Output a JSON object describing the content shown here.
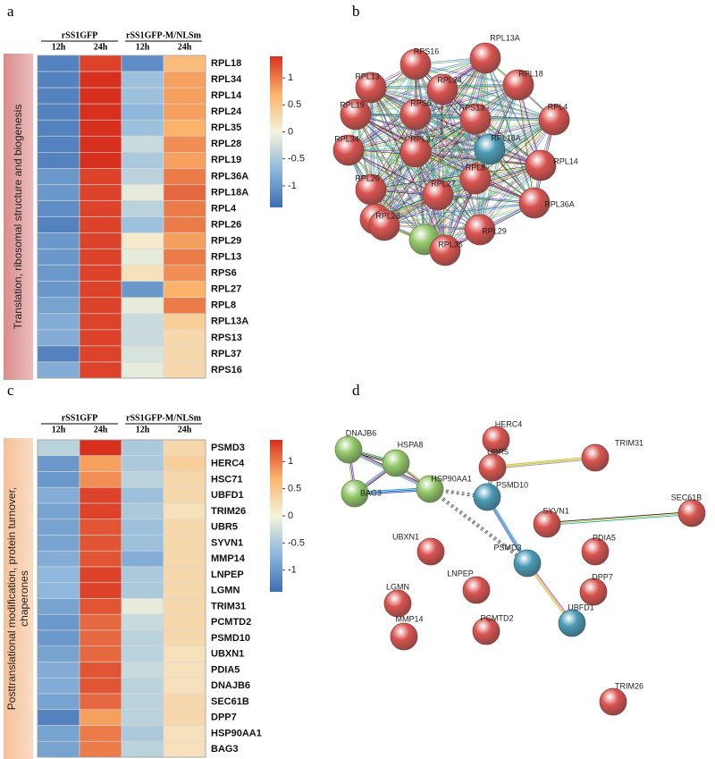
{
  "chart_data": [
    {
      "type": "heatmap",
      "panel": "a",
      "groups": [
        {
          "name": "rSS1GFP",
          "columns": [
            "12h",
            "24h"
          ]
        },
        {
          "name": "rSS1GFP-M/NLSm",
          "columns": [
            "12h",
            "24h"
          ]
        }
      ],
      "side_label": [
        "Translation, ribosomal structure and biogenesis"
      ],
      "rows": [
        "RPL18",
        "RPL34",
        "RPL14",
        "RPL24",
        "RPL35",
        "RPL28",
        "RPL19",
        "RPL36A",
        "RPL18A",
        "RPL4",
        "RPL26",
        "RPL29",
        "RPL13",
        "RPS6",
        "RPL27",
        "RPL8",
        "RPL13A",
        "RPS13",
        "RPL37",
        "RPS16"
      ],
      "values": [
        [
          -1.2,
          1.3,
          -1.1,
          0.6
        ],
        [
          -1.2,
          1.4,
          -0.6,
          0.8
        ],
        [
          -1.2,
          1.4,
          -0.6,
          0.8
        ],
        [
          -1.2,
          1.4,
          -0.7,
          0.8
        ],
        [
          -1.2,
          1.4,
          -0.6,
          0.7
        ],
        [
          -1.2,
          1.5,
          -0.3,
          0.9
        ],
        [
          -1.2,
          1.5,
          -0.5,
          0.8
        ],
        [
          -1.0,
          1.3,
          -0.4,
          1.0
        ],
        [
          -1.0,
          1.3,
          -0.1,
          1.1
        ],
        [
          -1.1,
          1.3,
          -0.4,
          1.0
        ],
        [
          -1.2,
          1.3,
          -0.6,
          1.0
        ],
        [
          -1.0,
          1.3,
          0.1,
          0.8
        ],
        [
          -1.0,
          1.3,
          -0.1,
          1.0
        ],
        [
          -1.0,
          1.3,
          0.2,
          0.9
        ],
        [
          -1.0,
          1.3,
          -1.0,
          0.7
        ],
        [
          -0.9,
          1.3,
          -0.1,
          1.0
        ],
        [
          -0.8,
          1.3,
          -0.3,
          0.4
        ],
        [
          -0.8,
          1.3,
          -0.3,
          0.3
        ],
        [
          -1.2,
          1.3,
          -0.2,
          0.3
        ],
        [
          -0.8,
          1.3,
          -0.1,
          0.3
        ]
      ],
      "zlim": [
        -1.4,
        1.4
      ],
      "colorbar_ticks": [
        1,
        0.5,
        0,
        -0.5,
        -1
      ],
      "colormap": [
        "#3b6db3",
        "#8fb8dc",
        "#f4f4dc",
        "#fbb36b",
        "#d7301f"
      ]
    },
    {
      "type": "heatmap",
      "panel": "c",
      "groups": [
        {
          "name": "rSS1GFP",
          "columns": [
            "12h",
            "24h"
          ]
        },
        {
          "name": "rSS1GFP-M/NLSm",
          "columns": [
            "12h",
            "24h"
          ]
        }
      ],
      "side_label": [
        "Posttranslational modification, protein turnover,",
        "chaperones"
      ],
      "rows": [
        "PSMD3",
        "HERC4",
        "HSC71",
        "UBFD1",
        "TRIM26",
        "UBR5",
        "SYVN1",
        "MMP14",
        "LNPEP",
        "LGMN",
        "TRIM31",
        "PCMTD2",
        "PSMD10",
        "UBXN1",
        "PDIA5",
        "DNAJB6",
        "SEC61B",
        "DPP7",
        "HSP90AA1",
        "BAG3"
      ],
      "values": [
        [
          -0.4,
          1.4,
          -0.5,
          0.3
        ],
        [
          -1.0,
          0.8,
          -0.5,
          0.4
        ],
        [
          -1.0,
          0.9,
          -0.4,
          0.3
        ],
        [
          -0.8,
          1.3,
          -0.6,
          0.3
        ],
        [
          -0.9,
          1.3,
          -0.5,
          0.2
        ],
        [
          -0.9,
          1.2,
          -0.6,
          0.3
        ],
        [
          -0.9,
          1.2,
          -0.6,
          0.3
        ],
        [
          -0.8,
          1.2,
          -0.8,
          0.3
        ],
        [
          -0.7,
          1.3,
          -0.5,
          0.3
        ],
        [
          -0.7,
          1.3,
          -0.5,
          0.3
        ],
        [
          -0.9,
          1.2,
          -0.1,
          0.3
        ],
        [
          -1.0,
          1.1,
          -0.3,
          0.3
        ],
        [
          -1.0,
          1.1,
          -0.4,
          0.3
        ],
        [
          -0.9,
          1.1,
          -0.4,
          0.2
        ],
        [
          -0.8,
          1.2,
          -0.3,
          0.2
        ],
        [
          -0.8,
          1.2,
          -0.4,
          0.2
        ],
        [
          -0.9,
          1.1,
          -0.4,
          0.3
        ],
        [
          -1.2,
          0.8,
          -0.4,
          0.3
        ],
        [
          -0.9,
          1.0,
          -0.5,
          0.2
        ],
        [
          -0.9,
          1.0,
          -0.4,
          0.2
        ]
      ],
      "zlim": [
        -1.4,
        1.4
      ],
      "colorbar_ticks": [
        1,
        0.5,
        0,
        -0.5,
        -1
      ],
      "colormap": [
        "#3b6db3",
        "#8fb8dc",
        "#f4f4dc",
        "#fbb36b",
        "#d7301f"
      ]
    }
  ],
  "networks": [
    {
      "panel": "b",
      "nodes": [
        {
          "label": "RPS16",
          "color": "#d9534f"
        },
        {
          "label": "RPL13A",
          "color": "#d9534f"
        },
        {
          "label": "RPL13",
          "color": "#d9534f"
        },
        {
          "label": "RPL24",
          "color": "#d9534f"
        },
        {
          "label": "RPL18",
          "color": "#d9534f"
        },
        {
          "label": "RPS6",
          "color": "#d9534f"
        },
        {
          "label": "RPL19",
          "color": "#d9534f"
        },
        {
          "label": "RPL4",
          "color": "#d9534f"
        },
        {
          "label": "RPS13",
          "color": "#d9534f"
        },
        {
          "label": "RPL37",
          "color": "#d9534f"
        },
        {
          "label": "RPL34",
          "color": "#d9534f"
        },
        {
          "label": "RPL18A",
          "color": "#4a9ab5"
        },
        {
          "label": "RPL14",
          "color": "#d9534f"
        },
        {
          "label": "RPL8",
          "color": "#d9534f"
        },
        {
          "label": "RPL26",
          "color": "#d9534f"
        },
        {
          "label": "RPL27",
          "color": "#d9534f"
        },
        {
          "label": "RPL36A",
          "color": "#d9534f"
        },
        {
          "label": "RPL28",
          "color": "#d9534f"
        },
        {
          "label": "RPL29",
          "color": "#d9534f"
        },
        {
          "label": "RPL35",
          "color": "#d9534f"
        }
      ]
    },
    {
      "panel": "d",
      "nodes": [
        {
          "label": "DNAJB6",
          "color": "#93c86a"
        },
        {
          "label": "HSPA8",
          "color": "#93c86a"
        },
        {
          "label": "BAG3",
          "color": "#93c86a"
        },
        {
          "label": "HSP90AA1",
          "color": "#93c86a"
        },
        {
          "label": "HERC4",
          "color": "#d9534f"
        },
        {
          "label": "UBR5",
          "color": "#d9534f"
        },
        {
          "label": "TRIM31",
          "color": "#d9534f"
        },
        {
          "label": "PSMD10",
          "color": "#4a9ab5"
        },
        {
          "label": "SEC61B",
          "color": "#d9534f"
        },
        {
          "label": "SYVN1",
          "color": "#d9534f"
        },
        {
          "label": "PDIA5",
          "color": "#d9534f"
        },
        {
          "label": "UBXN1",
          "color": "#d9534f"
        },
        {
          "label": "PSMD3",
          "color": "#4a9ab5"
        },
        {
          "label": "LNPEP",
          "color": "#d9534f"
        },
        {
          "label": "DPP7",
          "color": "#d9534f"
        },
        {
          "label": "LGMN",
          "color": "#d9534f"
        },
        {
          "label": "MMP14",
          "color": "#d9534f"
        },
        {
          "label": "PCMTD2",
          "color": "#d9534f"
        },
        {
          "label": "UBFD1",
          "color": "#4a9ab5"
        },
        {
          "label": "TRIM26",
          "color": "#d9534f"
        }
      ]
    }
  ]
}
